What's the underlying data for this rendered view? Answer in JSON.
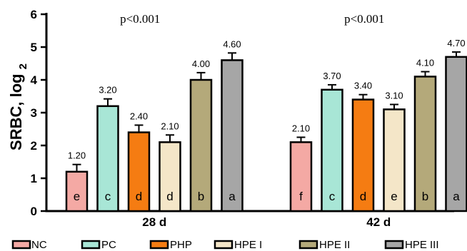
{
  "chart_data": {
    "type": "bar",
    "ylabel": "SRBC, log",
    "ylabel_subscript": "2",
    "ylim": [
      0,
      6
    ],
    "yticks": [
      "0",
      "1",
      "2",
      "3",
      "4",
      "5",
      "6"
    ],
    "groups": [
      {
        "label": "28 d",
        "pvalue": "p<0.001",
        "bars": [
          {
            "series": "NC",
            "value": 1.2,
            "value_label": "1.20",
            "error": 0.22,
            "letter": "e"
          },
          {
            "series": "PC",
            "value": 3.2,
            "value_label": "3.20",
            "error": 0.22,
            "letter": "c"
          },
          {
            "series": "PHP",
            "value": 2.4,
            "value_label": "2.40",
            "error": 0.22,
            "letter": "d"
          },
          {
            "series": "HPE I",
            "value": 2.1,
            "value_label": "2.10",
            "error": 0.22,
            "letter": "d"
          },
          {
            "series": "HPE II",
            "value": 4.0,
            "value_label": "4.00",
            "error": 0.22,
            "letter": "b"
          },
          {
            "series": "HPE III",
            "value": 4.6,
            "value_label": "4.60",
            "error": 0.22,
            "letter": "a"
          }
        ]
      },
      {
        "label": "42 d",
        "pvalue": "p<0.001",
        "bars": [
          {
            "series": "NC",
            "value": 2.1,
            "value_label": "2.10",
            "error": 0.15,
            "letter": "f"
          },
          {
            "series": "PC",
            "value": 3.7,
            "value_label": "3.70",
            "error": 0.15,
            "letter": "c"
          },
          {
            "series": "PHP",
            "value": 3.4,
            "value_label": "3.40",
            "error": 0.15,
            "letter": "d"
          },
          {
            "series": "HPE I",
            "value": 3.1,
            "value_label": "3.10",
            "error": 0.15,
            "letter": "e"
          },
          {
            "series": "HPE II",
            "value": 4.1,
            "value_label": "4.10",
            "error": 0.15,
            "letter": "b"
          },
          {
            "series": "HPE III",
            "value": 4.7,
            "value_label": "4.70",
            "error": 0.15,
            "letter": "a"
          }
        ]
      }
    ],
    "legend": {
      "placement": "bottom",
      "entries": [
        {
          "name": "NC",
          "color": "#f4a9a4"
        },
        {
          "name": "PC",
          "color": "#a8e6d6"
        },
        {
          "name": "PHP",
          "color": "#f57c12"
        },
        {
          "name": "HPE I",
          "color": "#f4e6c8"
        },
        {
          "name": "HPE II",
          "color": "#b4a97a"
        },
        {
          "name": "HPE III",
          "color": "#a6a6a6"
        }
      ]
    },
    "grid": false
  }
}
